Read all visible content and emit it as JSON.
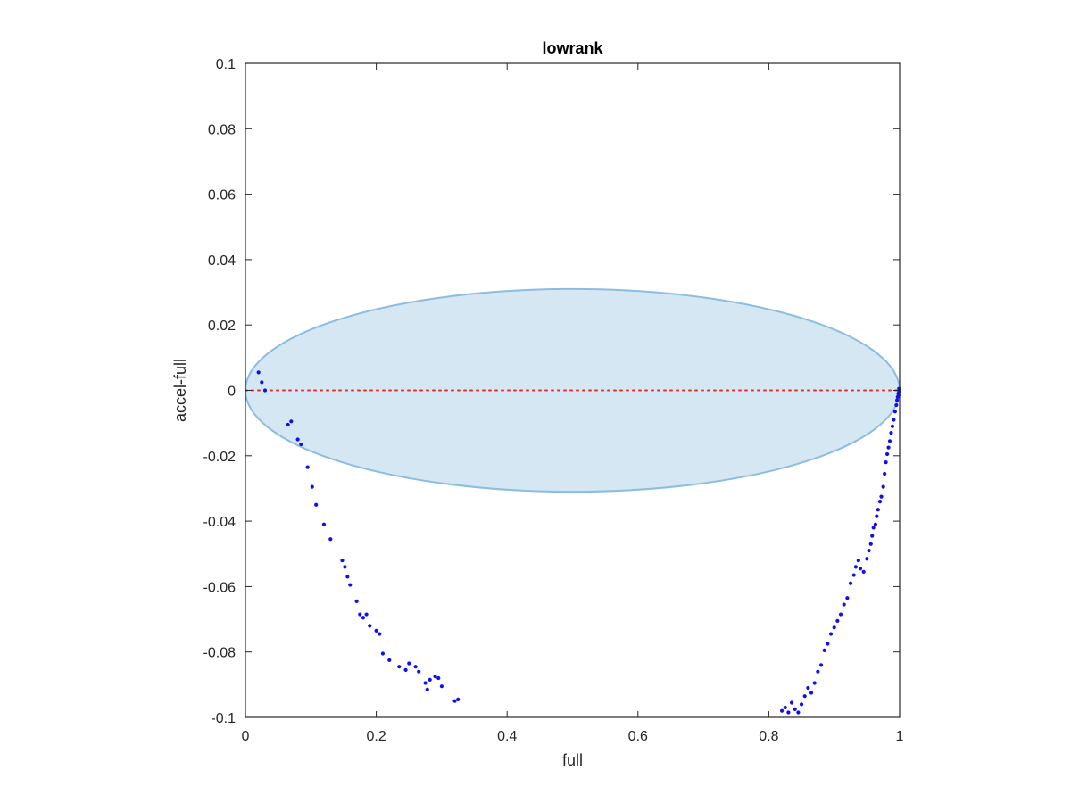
{
  "chart_data": {
    "type": "scatter",
    "title": "lowrank",
    "xlabel": "full",
    "ylabel": "accel-full",
    "xlim": [
      0,
      1
    ],
    "ylim": [
      -0.1,
      0.1
    ],
    "xticks": [
      0,
      0.2,
      0.4,
      0.6,
      0.8,
      1
    ],
    "xtick_labels": [
      "0",
      "0.2",
      "0.4",
      "0.6",
      "0.8",
      "1"
    ],
    "yticks": [
      -0.1,
      -0.08,
      -0.06,
      -0.04,
      -0.02,
      0,
      0.02,
      0.04,
      0.06,
      0.08,
      0.1
    ],
    "ytick_labels": [
      "-0.1",
      "-0.08",
      "-0.06",
      "-0.04",
      "-0.02",
      "0",
      "0.02",
      "0.04",
      "0.06",
      "0.08",
      "0.1"
    ],
    "grid": false,
    "reference_line": {
      "y": 0,
      "style": "dotted",
      "color": "#e03030"
    },
    "ellipse": {
      "cx": 0.5,
      "cy": 0,
      "rx": 0.5,
      "ry": 0.031,
      "fill": "#d6e7f4",
      "stroke": "#8cbde0"
    },
    "series": [
      {
        "color": "#1010ee",
        "points": [
          [
            0.02,
            0.0055
          ],
          [
            0.025,
            0.0025
          ],
          [
            0.03,
            0.0
          ],
          [
            0.065,
            -0.0105
          ],
          [
            0.07,
            -0.0095
          ],
          [
            0.08,
            -0.015
          ],
          [
            0.085,
            -0.0165
          ],
          [
            0.095,
            -0.0235
          ],
          [
            0.102,
            -0.0295
          ],
          [
            0.108,
            -0.035
          ],
          [
            0.12,
            -0.041
          ],
          [
            0.13,
            -0.0455
          ],
          [
            0.148,
            -0.052
          ],
          [
            0.152,
            -0.054
          ],
          [
            0.156,
            -0.057
          ],
          [
            0.16,
            -0.0595
          ],
          [
            0.17,
            -0.0645
          ],
          [
            0.175,
            -0.0685
          ],
          [
            0.18,
            -0.0695
          ],
          [
            0.185,
            -0.0685
          ],
          [
            0.19,
            -0.072
          ],
          [
            0.2,
            -0.0735
          ],
          [
            0.205,
            -0.0745
          ],
          [
            0.21,
            -0.0805
          ],
          [
            0.22,
            -0.0825
          ],
          [
            0.235,
            -0.0845
          ],
          [
            0.245,
            -0.0855
          ],
          [
            0.25,
            -0.0835
          ],
          [
            0.26,
            -0.0845
          ],
          [
            0.265,
            -0.086
          ],
          [
            0.275,
            -0.0895
          ],
          [
            0.278,
            -0.0915
          ],
          [
            0.282,
            -0.0885
          ],
          [
            0.29,
            -0.0875
          ],
          [
            0.295,
            -0.088
          ],
          [
            0.3,
            -0.0905
          ],
          [
            0.32,
            -0.095
          ],
          [
            0.325,
            -0.0945
          ],
          [
            0.82,
            -0.098
          ],
          [
            0.825,
            -0.097
          ],
          [
            0.83,
            -0.0985
          ],
          [
            0.835,
            -0.0955
          ],
          [
            0.84,
            -0.0975
          ],
          [
            0.845,
            -0.0985
          ],
          [
            0.85,
            -0.096
          ],
          [
            0.855,
            -0.0935
          ],
          [
            0.86,
            -0.091
          ],
          [
            0.865,
            -0.0925
          ],
          [
            0.87,
            -0.0895
          ],
          [
            0.875,
            -0.086
          ],
          [
            0.88,
            -0.084
          ],
          [
            0.885,
            -0.0795
          ],
          [
            0.89,
            -0.0775
          ],
          [
            0.895,
            -0.0745
          ],
          [
            0.9,
            -0.0725
          ],
          [
            0.905,
            -0.0705
          ],
          [
            0.91,
            -0.0685
          ],
          [
            0.915,
            -0.0655
          ],
          [
            0.92,
            -0.0635
          ],
          [
            0.925,
            -0.059
          ],
          [
            0.93,
            -0.0565
          ],
          [
            0.933,
            -0.054
          ],
          [
            0.937,
            -0.052
          ],
          [
            0.94,
            -0.0545
          ],
          [
            0.945,
            -0.0555
          ],
          [
            0.95,
            -0.0515
          ],
          [
            0.953,
            -0.049
          ],
          [
            0.956,
            -0.047
          ],
          [
            0.958,
            -0.0445
          ],
          [
            0.96,
            -0.042
          ],
          [
            0.963,
            -0.041
          ],
          [
            0.965,
            -0.0385
          ],
          [
            0.967,
            -0.0365
          ],
          [
            0.97,
            -0.034
          ],
          [
            0.972,
            -0.0325
          ],
          [
            0.975,
            -0.0295
          ],
          [
            0.977,
            -0.0255
          ],
          [
            0.979,
            -0.022
          ],
          [
            0.981,
            -0.0195
          ],
          [
            0.983,
            -0.0175
          ],
          [
            0.985,
            -0.0155
          ],
          [
            0.987,
            -0.013
          ],
          [
            0.989,
            -0.011
          ],
          [
            0.991,
            -0.009
          ],
          [
            0.993,
            -0.0065
          ],
          [
            0.995,
            -0.0045
          ],
          [
            0.996,
            -0.003
          ],
          [
            0.997,
            -0.002
          ],
          [
            0.998,
            -0.001
          ],
          [
            0.999,
            -0.0005
          ],
          [
            1.0,
            0.0
          ],
          [
            0.999,
            0.0005
          ],
          [
            0.9985,
            -0.0015
          ]
        ]
      }
    ]
  }
}
